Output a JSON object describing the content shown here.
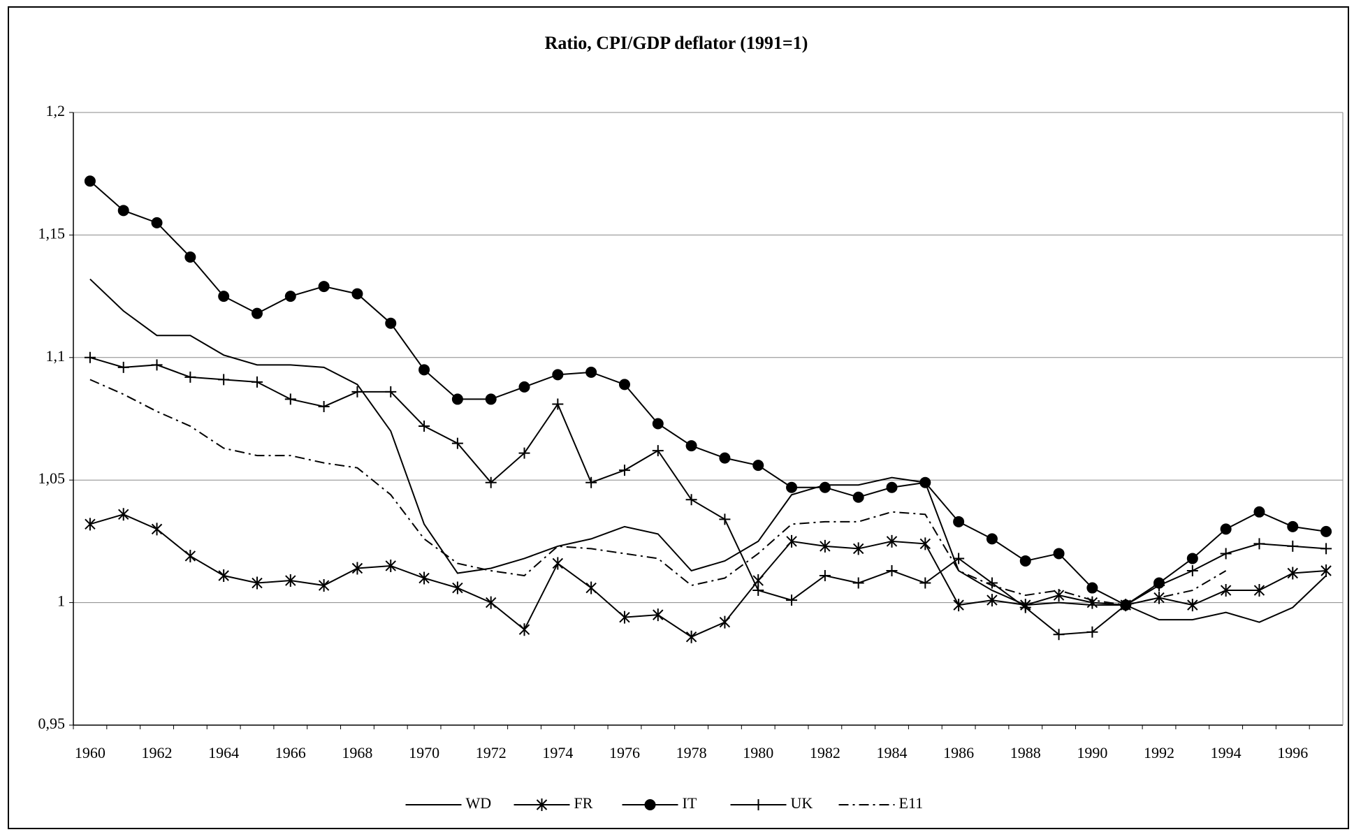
{
  "chart_data": {
    "type": "line",
    "title": "Ratio, CPI/GDP deflator (1991=1)",
    "categories": [
      "1960",
      null,
      "1962",
      null,
      "1964",
      null,
      "1966",
      null,
      "1968",
      null,
      "1970",
      null,
      "1972",
      null,
      "1974",
      null,
      "1976",
      null,
      "1978",
      null,
      "1980",
      null,
      "1982",
      null,
      "1984",
      null,
      "1986",
      null,
      "1988",
      null,
      "1990",
      null,
      "1992",
      null,
      "1994",
      null,
      "1996",
      null
    ],
    "series": [
      {
        "name": "WD",
        "color": "#000000",
        "marker": "none",
        "dash": "solid",
        "values": [
          1.132,
          1.119,
          1.109,
          1.109,
          1.101,
          1.097,
          1.097,
          1.096,
          1.089,
          1.07,
          1.032,
          1.012,
          1.014,
          1.018,
          1.023,
          1.026,
          1.031,
          1.028,
          1.013,
          1.017,
          1.025,
          1.044,
          1.048,
          1.048,
          1.051,
          1.049,
          1.013,
          1.005,
          0.999,
          1.0,
          0.999,
          0.999,
          0.993,
          0.993,
          0.996,
          0.992,
          0.998,
          1.011
        ]
      },
      {
        "name": "FR",
        "color": "#000000",
        "marker": "star",
        "dash": "solid",
        "values": [
          1.032,
          1.036,
          1.03,
          1.019,
          1.011,
          1.008,
          1.009,
          1.007,
          1.014,
          1.015,
          1.01,
          1.006,
          1.0,
          0.989,
          1.016,
          1.006,
          0.994,
          0.995,
          0.986,
          0.992,
          1.009,
          1.025,
          1.023,
          1.022,
          1.025,
          1.024,
          0.999,
          1.001,
          0.999,
          1.003,
          1.0,
          0.999,
          1.002,
          0.999,
          1.005,
          1.005,
          1.012,
          1.013
        ]
      },
      {
        "name": "IT",
        "color": "#000000",
        "marker": "circle",
        "dash": "solid",
        "values": [
          1.172,
          1.16,
          1.155,
          1.141,
          1.125,
          1.118,
          1.125,
          1.129,
          1.126,
          1.114,
          1.095,
          1.083,
          1.083,
          1.088,
          1.093,
          1.094,
          1.089,
          1.073,
          1.064,
          1.059,
          1.056,
          1.047,
          1.047,
          1.043,
          1.047,
          1.049,
          1.033,
          1.026,
          1.017,
          1.02,
          1.006,
          0.999,
          1.008,
          1.018,
          1.03,
          1.037,
          1.031,
          1.029
        ]
      },
      {
        "name": "UK",
        "color": "#000000",
        "marker": "plus",
        "dash": "solid",
        "values": [
          1.1,
          1.096,
          1.097,
          1.092,
          1.091,
          1.09,
          1.083,
          1.08,
          1.086,
          1.086,
          1.072,
          1.065,
          1.049,
          1.061,
          1.081,
          1.049,
          1.054,
          1.062,
          1.042,
          1.034,
          1.005,
          1.001,
          1.011,
          1.008,
          1.013,
          1.008,
          1.018,
          1.008,
          0.998,
          0.987,
          0.988,
          0.999,
          1.007,
          1.013,
          1.02,
          1.024,
          1.023,
          1.022
        ]
      },
      {
        "name": "E11",
        "color": "#000000",
        "marker": "none",
        "dash": "dashdot",
        "values": [
          1.091,
          1.085,
          1.078,
          1.072,
          1.063,
          1.06,
          1.06,
          1.057,
          1.055,
          1.044,
          1.026,
          1.016,
          1.013,
          1.011,
          1.023,
          1.022,
          1.02,
          1.018,
          1.007,
          1.01,
          1.02,
          1.032,
          1.033,
          1.033,
          1.037,
          1.036,
          1.013,
          1.007,
          1.003,
          1.005,
          1.001,
          0.999,
          1.002,
          1.005,
          1.013,
          null,
          null,
          null
        ]
      }
    ],
    "ylim": [
      0.95,
      1.2
    ],
    "yticks": [
      {
        "value": 0.95,
        "label": "0,95"
      },
      1,
      {
        "value": 1.05,
        "label": "1,05"
      },
      {
        "value": 1.1,
        "label": "1,1"
      },
      {
        "value": 1.15,
        "label": "1,15"
      },
      {
        "value": 1.2,
        "label": "1,2"
      }
    ],
    "grid": true,
    "legend": "bottom"
  }
}
